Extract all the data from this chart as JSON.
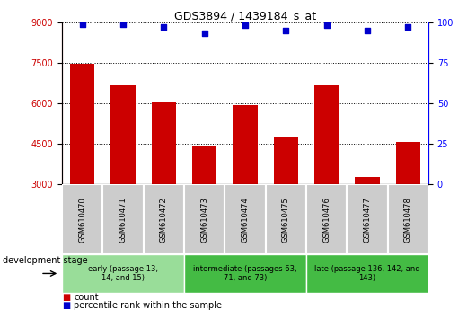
{
  "title": "GDS3894 / 1439184_s_at",
  "samples": [
    "GSM610470",
    "GSM610471",
    "GSM610472",
    "GSM610473",
    "GSM610474",
    "GSM610475",
    "GSM610476",
    "GSM610477",
    "GSM610478"
  ],
  "counts": [
    7450,
    6650,
    6020,
    4400,
    5930,
    4750,
    6680,
    3280,
    4570
  ],
  "percentile_ranks": [
    99,
    99,
    97,
    93,
    98,
    95,
    98,
    95,
    97
  ],
  "ymin": 3000,
  "ymax": 9000,
  "yticks": [
    3000,
    4500,
    6000,
    7500,
    9000
  ],
  "y2ticks": [
    0,
    25,
    50,
    75,
    100
  ],
  "bar_color": "#cc0000",
  "scatter_color": "#0000cc",
  "sample_box_color": "#cccccc",
  "group_defs": [
    {
      "label": "early (passage 13,\n14, and 15)",
      "start": 0,
      "end": 3,
      "color": "#99dd99"
    },
    {
      "label": "intermediate (passages 63,\n71, and 73)",
      "start": 3,
      "end": 6,
      "color": "#44bb44"
    },
    {
      "label": "late (passage 136, 142, and\n143)",
      "start": 6,
      "end": 9,
      "color": "#44bb44"
    }
  ],
  "dev_stage_label": "development stage",
  "legend_count_label": "count",
  "legend_pct_label": "percentile rank within the sample",
  "title_fontsize": 9,
  "tick_fontsize": 7,
  "label_fontsize": 7,
  "group_fontsize": 6,
  "sample_fontsize": 6
}
